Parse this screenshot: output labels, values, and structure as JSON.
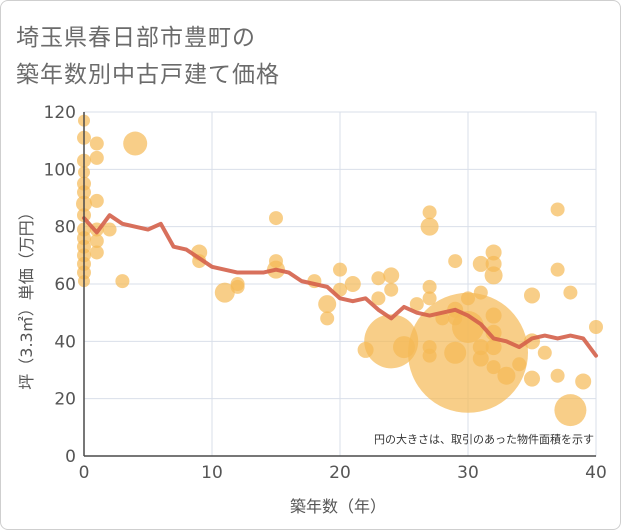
{
  "chart_data": {
    "type": "scatter",
    "title_line1": "埼玉県春日部市豊町の",
    "title_line2": "築年数別中古戸建て価格",
    "xlabel": "築年数（年）",
    "ylabel": "坪（3.3㎡）単価（万円）",
    "note": "円の大きさは、取引のあった物件面積を示す",
    "xlim": [
      0,
      40
    ],
    "ylim": [
      0,
      120
    ],
    "x_ticks": [
      0,
      10,
      20,
      30,
      40
    ],
    "y_ticks": [
      0,
      20,
      40,
      60,
      80,
      100,
      120
    ],
    "grid": true,
    "colors": {
      "bubble": "#f5b955",
      "line": "#d4604a",
      "grid": "#d9dfea",
      "axis": "#4a4a4a"
    },
    "bubbles": [
      {
        "x": 0,
        "y": 117,
        "s": 6
      },
      {
        "x": 0,
        "y": 111,
        "s": 7
      },
      {
        "x": 0,
        "y": 103,
        "s": 7
      },
      {
        "x": 0,
        "y": 99,
        "s": 6
      },
      {
        "x": 0,
        "y": 95,
        "s": 7
      },
      {
        "x": 0,
        "y": 92,
        "s": 7
      },
      {
        "x": 0,
        "y": 88,
        "s": 8
      },
      {
        "x": 0,
        "y": 84,
        "s": 7
      },
      {
        "x": 0,
        "y": 79,
        "s": 7
      },
      {
        "x": 0,
        "y": 76,
        "s": 7
      },
      {
        "x": 0,
        "y": 73,
        "s": 7
      },
      {
        "x": 0,
        "y": 70,
        "s": 7
      },
      {
        "x": 0,
        "y": 67,
        "s": 7
      },
      {
        "x": 0,
        "y": 64,
        "s": 7
      },
      {
        "x": 0,
        "y": 61,
        "s": 6
      },
      {
        "x": 1,
        "y": 109,
        "s": 7
      },
      {
        "x": 1,
        "y": 104,
        "s": 7
      },
      {
        "x": 1,
        "y": 89,
        "s": 7
      },
      {
        "x": 1,
        "y": 79,
        "s": 7
      },
      {
        "x": 1,
        "y": 75,
        "s": 7
      },
      {
        "x": 1,
        "y": 71,
        "s": 7
      },
      {
        "x": 2,
        "y": 79,
        "s": 7
      },
      {
        "x": 3,
        "y": 61,
        "s": 7
      },
      {
        "x": 4,
        "y": 109,
        "s": 12
      },
      {
        "x": 9,
        "y": 71,
        "s": 8
      },
      {
        "x": 9,
        "y": 68,
        "s": 7
      },
      {
        "x": 11,
        "y": 57,
        "s": 10
      },
      {
        "x": 12,
        "y": 60,
        "s": 7
      },
      {
        "x": 12,
        "y": 59,
        "s": 7
      },
      {
        "x": 15,
        "y": 83,
        "s": 7
      },
      {
        "x": 15,
        "y": 68,
        "s": 7
      },
      {
        "x": 15,
        "y": 65,
        "s": 9
      },
      {
        "x": 18,
        "y": 61,
        "s": 7
      },
      {
        "x": 19,
        "y": 53,
        "s": 9
      },
      {
        "x": 19,
        "y": 48,
        "s": 7
      },
      {
        "x": 20,
        "y": 65,
        "s": 7
      },
      {
        "x": 20,
        "y": 58,
        "s": 7
      },
      {
        "x": 21,
        "y": 60,
        "s": 8
      },
      {
        "x": 22,
        "y": 37,
        "s": 8
      },
      {
        "x": 23,
        "y": 62,
        "s": 7
      },
      {
        "x": 23,
        "y": 55,
        "s": 7
      },
      {
        "x": 24,
        "y": 63,
        "s": 8
      },
      {
        "x": 24,
        "y": 58,
        "s": 7
      },
      {
        "x": 24,
        "y": 40,
        "s": 27
      },
      {
        "x": 25,
        "y": 38,
        "s": 11
      },
      {
        "x": 26,
        "y": 53,
        "s": 7
      },
      {
        "x": 27,
        "y": 85,
        "s": 7
      },
      {
        "x": 27,
        "y": 80,
        "s": 9
      },
      {
        "x": 27,
        "y": 59,
        "s": 7
      },
      {
        "x": 27,
        "y": 55,
        "s": 7
      },
      {
        "x": 27,
        "y": 38,
        "s": 7
      },
      {
        "x": 27,
        "y": 35,
        "s": 7
      },
      {
        "x": 28,
        "y": 48,
        "s": 7
      },
      {
        "x": 29,
        "y": 68,
        "s": 7
      },
      {
        "x": 29,
        "y": 51,
        "s": 8
      },
      {
        "x": 29,
        "y": 48,
        "s": 7
      },
      {
        "x": 29,
        "y": 36,
        "s": 11
      },
      {
        "x": 30,
        "y": 55,
        "s": 7
      },
      {
        "x": 30,
        "y": 36,
        "s": 60
      },
      {
        "x": 30,
        "y": 45,
        "s": 16
      },
      {
        "x": 31,
        "y": 67,
        "s": 8
      },
      {
        "x": 31,
        "y": 57,
        "s": 7
      },
      {
        "x": 31,
        "y": 34,
        "s": 8
      },
      {
        "x": 31,
        "y": 38,
        "s": 8
      },
      {
        "x": 32,
        "y": 71,
        "s": 8
      },
      {
        "x": 32,
        "y": 67,
        "s": 8
      },
      {
        "x": 32,
        "y": 63,
        "s": 9
      },
      {
        "x": 32,
        "y": 49,
        "s": 8
      },
      {
        "x": 32,
        "y": 43,
        "s": 8
      },
      {
        "x": 32,
        "y": 38,
        "s": 8
      },
      {
        "x": 32,
        "y": 31,
        "s": 7
      },
      {
        "x": 33,
        "y": 28,
        "s": 9
      },
      {
        "x": 34,
        "y": 32,
        "s": 7
      },
      {
        "x": 35,
        "y": 56,
        "s": 8
      },
      {
        "x": 35,
        "y": 40,
        "s": 8
      },
      {
        "x": 35,
        "y": 27,
        "s": 8
      },
      {
        "x": 36,
        "y": 36,
        "s": 7
      },
      {
        "x": 37,
        "y": 86,
        "s": 7
      },
      {
        "x": 37,
        "y": 65,
        "s": 7
      },
      {
        "x": 37,
        "y": 28,
        "s": 7
      },
      {
        "x": 38,
        "y": 57,
        "s": 7
      },
      {
        "x": 38,
        "y": 16,
        "s": 16
      },
      {
        "x": 39,
        "y": 26,
        "s": 8
      },
      {
        "x": 40,
        "y": 45,
        "s": 7
      }
    ],
    "trend": {
      "x": [
        0,
        1,
        2,
        3,
        4,
        5,
        6,
        7,
        8,
        9,
        10,
        11,
        12,
        13,
        14,
        15,
        16,
        17,
        18,
        19,
        20,
        21,
        22,
        23,
        24,
        25,
        26,
        27,
        28,
        29,
        30,
        31,
        32,
        33,
        34,
        35,
        36,
        37,
        38,
        39,
        40
      ],
      "y": [
        83,
        78,
        84,
        81,
        80,
        79,
        81,
        73,
        72,
        69,
        66,
        65,
        64,
        64,
        64,
        65,
        64,
        61,
        60,
        59,
        55,
        54,
        55,
        51,
        48,
        52,
        50,
        49,
        50,
        51,
        49,
        46,
        41,
        40,
        38,
        41,
        42,
        41,
        42,
        41,
        35
      ]
    }
  }
}
